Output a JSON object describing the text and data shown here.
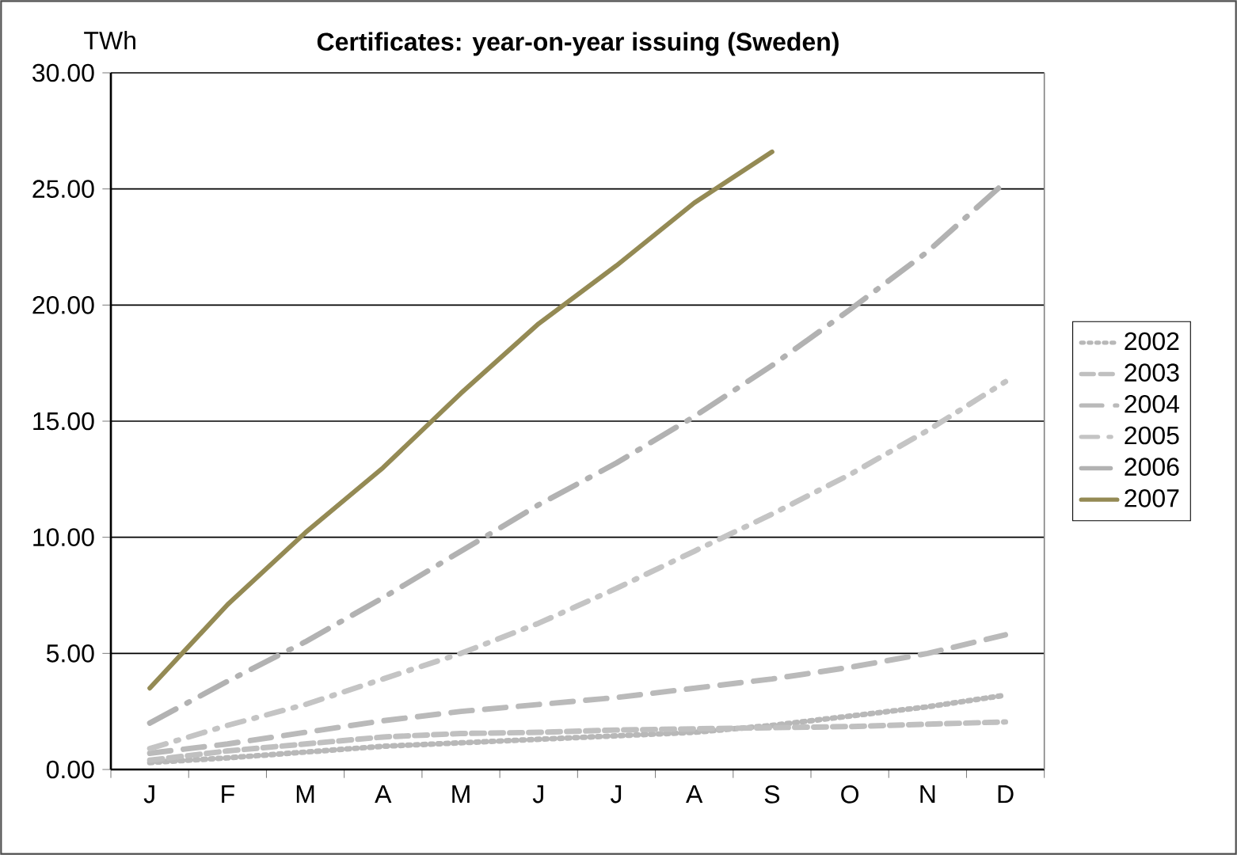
{
  "chart_data": {
    "type": "line",
    "title": "Certificates: year-on-year issuing (Sweden)",
    "ylabel": "TWh",
    "categories": [
      "J",
      "F",
      "M",
      "A",
      "M",
      "J",
      "J",
      "A",
      "S",
      "O",
      "N",
      "D"
    ],
    "ylim": [
      0,
      30
    ],
    "yticks": [
      {
        "value": 0,
        "label": "0.00"
      },
      {
        "value": 5,
        "label": "5.00"
      },
      {
        "value": 10,
        "label": "10.00"
      },
      {
        "value": 15,
        "label": "15.00"
      },
      {
        "value": 20,
        "label": "20.00"
      },
      {
        "value": 25,
        "label": "25.00"
      },
      {
        "value": 30,
        "label": "30.00"
      }
    ],
    "grid": "y",
    "legend": "right",
    "series": [
      {
        "name": "2002",
        "color": "#b8b8b8",
        "line_style": "dotted",
        "values": [
          0.3,
          0.5,
          0.75,
          1.0,
          1.15,
          1.3,
          1.45,
          1.6,
          1.9,
          2.3,
          2.7,
          3.2
        ]
      },
      {
        "name": "2003",
        "color": "#c0c0c0",
        "line_style": "dashed",
        "values": [
          0.4,
          0.8,
          1.1,
          1.4,
          1.55,
          1.6,
          1.7,
          1.75,
          1.8,
          1.85,
          1.95,
          2.05
        ]
      },
      {
        "name": "2004",
        "color": "#bababa",
        "line_style": "longdashed",
        "values": [
          0.7,
          1.1,
          1.6,
          2.1,
          2.5,
          2.8,
          3.1,
          3.5,
          3.9,
          4.4,
          5.0,
          5.8
        ]
      },
      {
        "name": "2005",
        "color": "#c4c4c4",
        "line_style": "dashdot",
        "values": [
          0.9,
          1.9,
          2.8,
          3.9,
          5.0,
          6.3,
          7.8,
          9.4,
          11.0,
          12.7,
          14.6,
          16.7
        ]
      },
      {
        "name": "2006",
        "color": "#b2b2b2",
        "line_style": "longdashdot",
        "values": [
          2.0,
          3.8,
          5.5,
          7.4,
          9.4,
          11.4,
          13.2,
          15.2,
          17.4,
          19.8,
          22.3,
          25.3
        ]
      },
      {
        "name": "2007",
        "color": "#948a54",
        "line_style": "solid",
        "values": [
          3.5,
          7.1,
          10.2,
          13.0,
          16.2,
          19.2,
          21.7,
          24.4,
          26.6,
          null,
          null,
          null
        ]
      }
    ]
  }
}
